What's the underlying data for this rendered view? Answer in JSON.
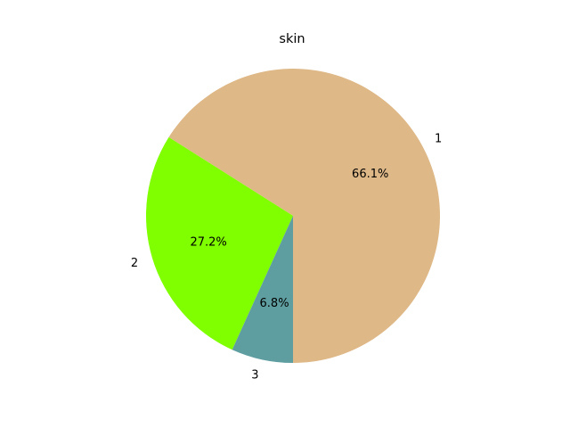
{
  "chart_data": {
    "type": "pie",
    "title": "skin",
    "categories": [
      "1",
      "2",
      "3"
    ],
    "values": [
      66.1,
      27.2,
      6.8
    ],
    "value_labels": [
      "66.1%",
      "27.2%",
      "6.8%"
    ],
    "colors": [
      "#deb887",
      "#7fff00",
      "#5f9ea0"
    ],
    "start_angle_deg": 270,
    "direction": "counterclockwise"
  }
}
